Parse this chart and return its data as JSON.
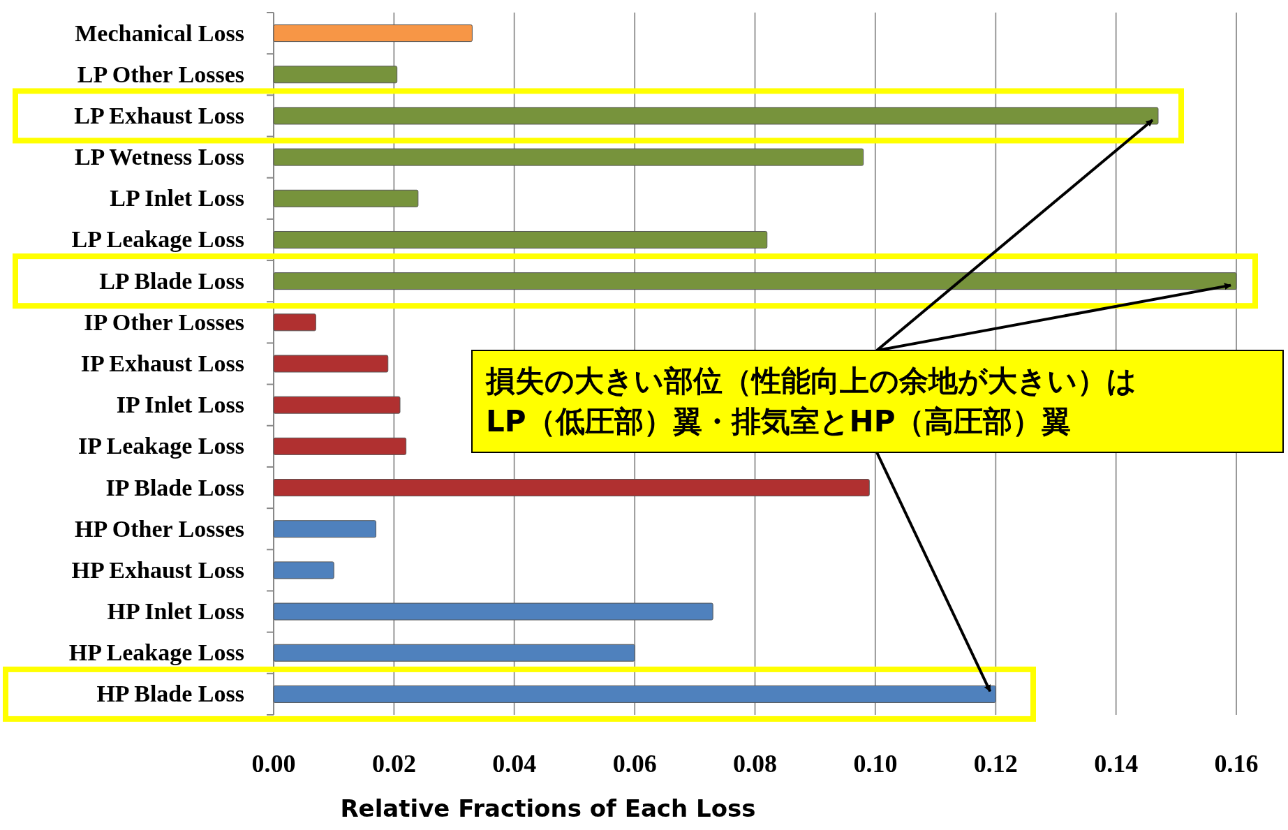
{
  "chart_data": {
    "type": "bar",
    "orientation": "horizontal",
    "xlabel": "Relative Fractions of Each Loss",
    "categories": [
      "Mechanical Loss",
      "LP Other Losses",
      "LP Exhaust Loss",
      "LP Wetness Loss",
      "LP Inlet Loss",
      "LP Leakage Loss",
      "LP Blade Loss",
      "IP Other Losses",
      "IP Exhaust Loss",
      "IP Inlet Loss",
      "IP Leakage Loss",
      "IP Blade Loss",
      "HP Other Losses",
      "HP Exhaust Loss",
      "HP Inlet Loss",
      "HP Leakage Loss",
      "HP Blade Loss"
    ],
    "values": [
      0.033,
      0.0205,
      0.147,
      0.098,
      0.024,
      0.082,
      0.16,
      0.007,
      0.019,
      0.021,
      0.022,
      0.099,
      0.017,
      0.01,
      0.073,
      0.06,
      0.12
    ],
    "colors": [
      "#f79646",
      "#77933c",
      "#77933c",
      "#77933c",
      "#77933c",
      "#77933c",
      "#77933c",
      "#b03030",
      "#b03030",
      "#b03030",
      "#b03030",
      "#b03030",
      "#4f81bd",
      "#4f81bd",
      "#4f81bd",
      "#4f81bd",
      "#4f81bd"
    ],
    "xlim": [
      0,
      0.16
    ],
    "xticks": [
      {
        "value": 0,
        "label": "0.00"
      },
      {
        "value": 0.02,
        "label": "0.02"
      },
      {
        "value": 0.04,
        "label": "0.04"
      },
      {
        "value": 0.06,
        "label": "0.06"
      },
      {
        "value": 0.08,
        "label": "0.08"
      },
      {
        "value": 0.1,
        "label": "0.10"
      },
      {
        "value": 0.12,
        "label": "0.12"
      },
      {
        "value": 0.14,
        "label": "0.14"
      },
      {
        "value": 0.16,
        "label": "0.16"
      }
    ],
    "grid": "x",
    "annotations": [
      "損失の大きい部位（性能向上の余地が大きい）は\nLP（低圧部）翼・排気室とHP（高圧部）翼"
    ]
  }
}
